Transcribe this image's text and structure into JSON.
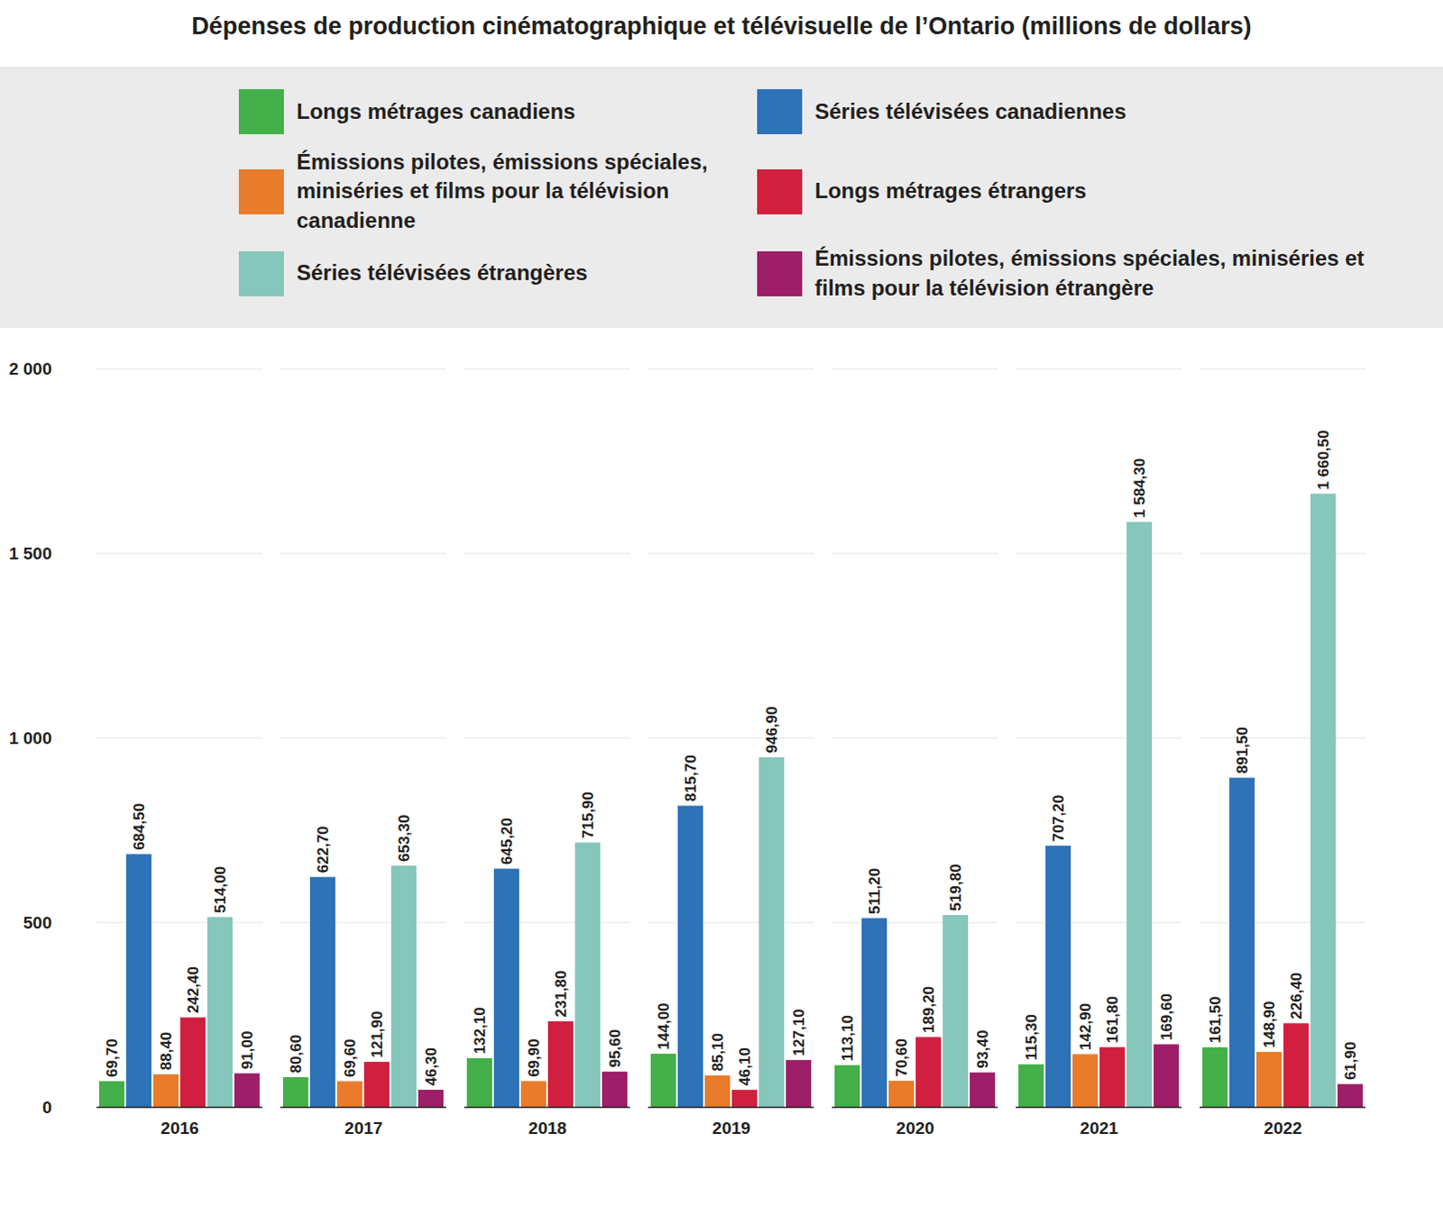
{
  "chart_data": {
    "type": "bar",
    "title": "Dépenses de production cinématographique et télévisuelle de l’Ontario (millions de dollars)",
    "categories": [
      "2016",
      "2017",
      "2018",
      "2019",
      "2020",
      "2021",
      "2022"
    ],
    "series": [
      {
        "name": "Longs métrages canadiens",
        "color": "#44b04a",
        "values": [
          69.7,
          80.6,
          132.1,
          144.0,
          113.1,
          115.3,
          161.5
        ],
        "value_labels": [
          "69,70",
          "80,60",
          "132,10",
          "144,00",
          "113,10",
          "115,30",
          "161,50"
        ]
      },
      {
        "name": "Séries télévisées canadiennes",
        "color": "#2e72b8",
        "values": [
          684.5,
          622.7,
          645.2,
          815.7,
          511.2,
          707.2,
          891.5
        ],
        "value_labels": [
          "684,50",
          "622,70",
          "645,20",
          "815,70",
          "511,20",
          "707,20",
          "891,50"
        ]
      },
      {
        "name": "Émissions pilotes, émissions spéciales, miniséries et films pour la télévision canadienne",
        "color": "#e87c2a",
        "values": [
          88.4,
          69.6,
          69.9,
          85.1,
          70.6,
          142.9,
          148.9
        ],
        "value_labels": [
          "88,40",
          "69,60",
          "69,90",
          "85,10",
          "70,60",
          "142,90",
          "148,90"
        ]
      },
      {
        "name": "Longs métrages étrangers",
        "color": "#d1203f",
        "values": [
          242.4,
          121.9,
          231.8,
          46.1,
          189.2,
          161.8,
          226.4
        ],
        "value_labels": [
          "242,40",
          "121,90",
          "231,80",
          "46,10",
          "189,20",
          "161,80",
          "226,40"
        ]
      },
      {
        "name": "Séries télévisées étrangères",
        "color": "#86c6bb",
        "values": [
          514.0,
          653.3,
          715.9,
          946.9,
          519.8,
          1584.3,
          1660.5
        ],
        "value_labels": [
          "514,00",
          "653,30",
          "715,90",
          "946,90",
          "519,80",
          "1 584,30",
          "1 660,50"
        ]
      },
      {
        "name": "Émissions pilotes, émissions spéciales, miniséries et films pour la télévision étrangère",
        "color": "#9d1f68",
        "values": [
          91.0,
          46.3,
          95.6,
          127.1,
          93.4,
          169.6,
          61.9
        ],
        "value_labels": [
          "91,00",
          "46,30",
          "95,60",
          "127,10",
          "93,40",
          "169,60",
          "61,90"
        ]
      }
    ],
    "ylim": [
      0,
      2000
    ],
    "yticks": [
      0,
      500,
      {
        "value": 1000,
        "label": "1 000"
      },
      {
        "value": 1500,
        "label": "1 500"
      },
      {
        "value": 2000,
        "label": "2 000"
      }
    ],
    "grid": true,
    "data_labels": true,
    "legend": "top"
  }
}
